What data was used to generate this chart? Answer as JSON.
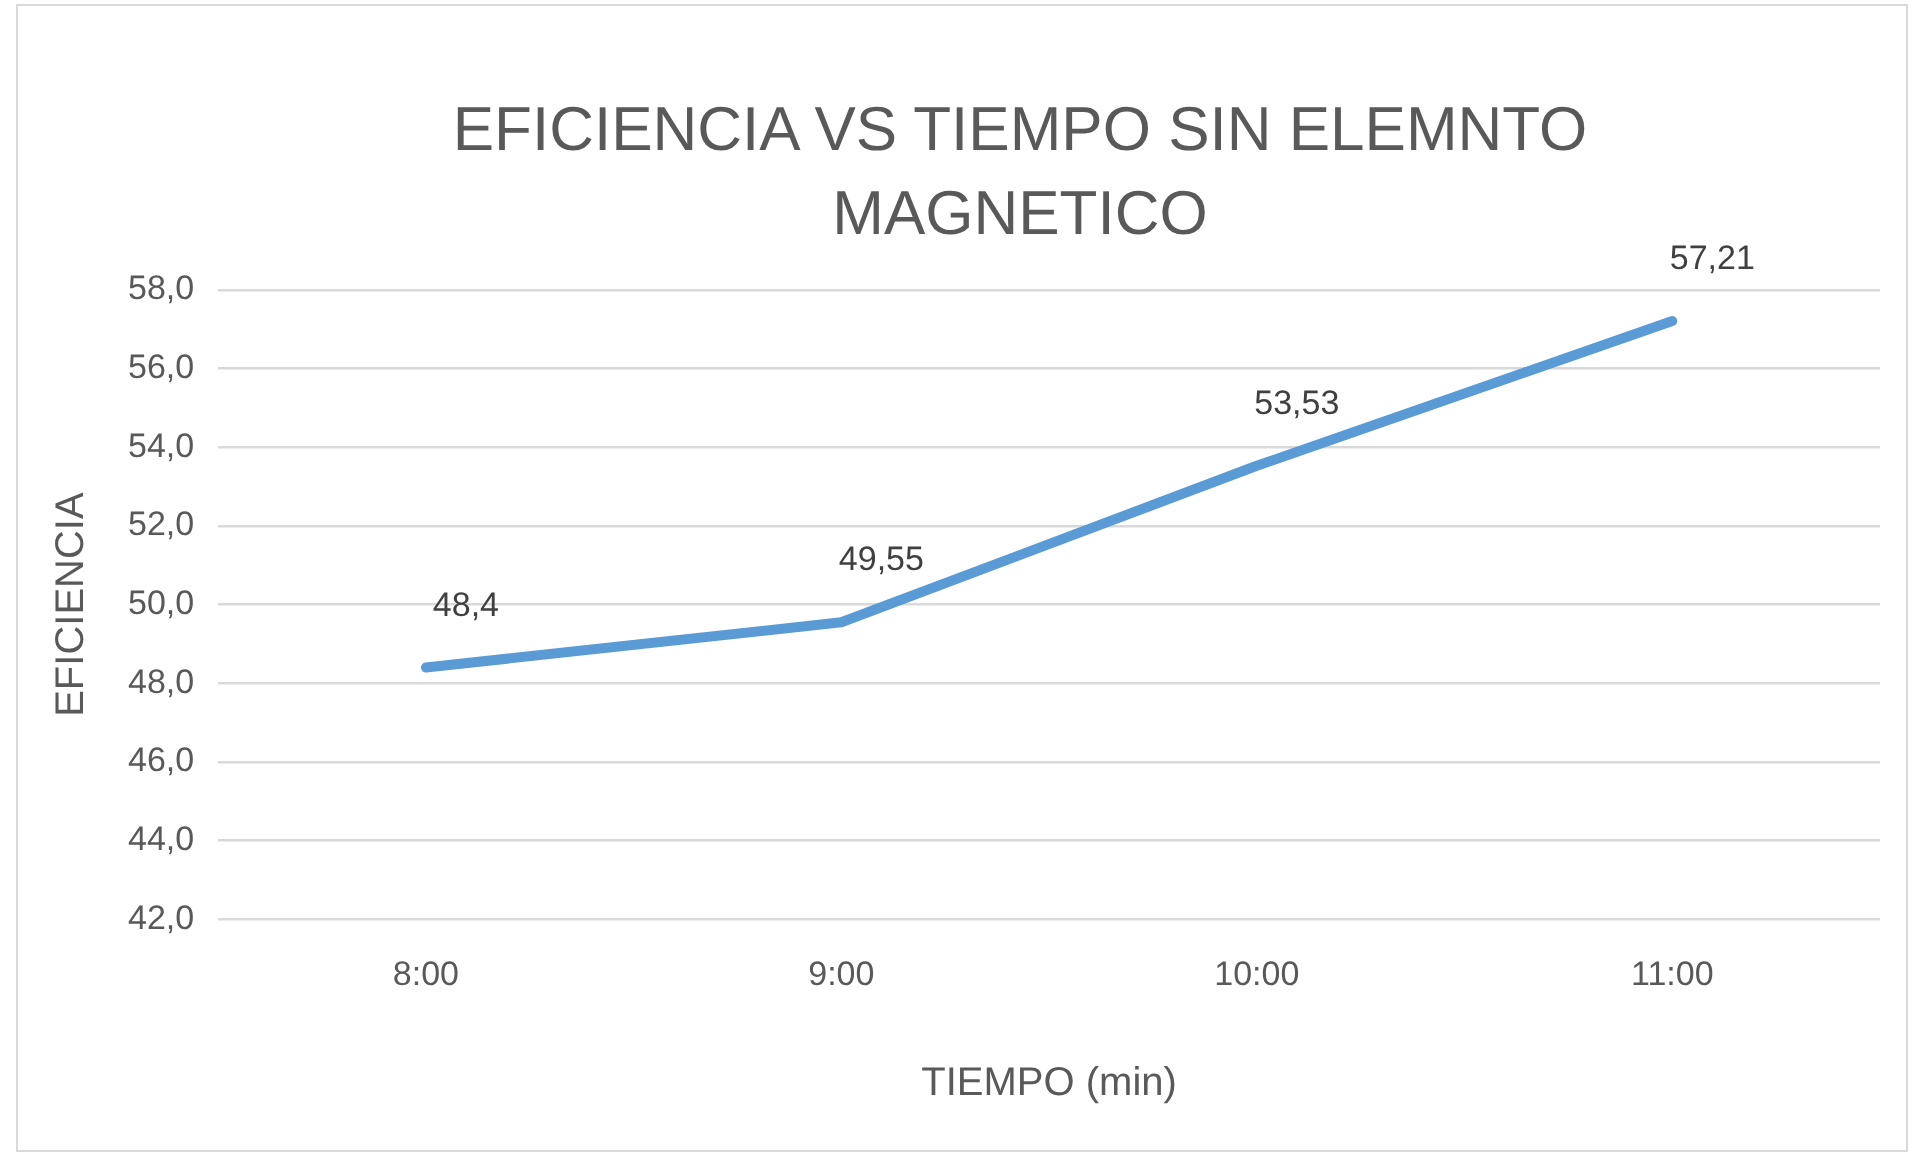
{
  "chart_data": {
    "type": "line",
    "title": "EFICIENCIA VS TIEMPO  SIN ELEMNTO MAGNETICO",
    "xlabel": "TIEMPO (min)",
    "ylabel": "EFICIENCIA",
    "categories": [
      "8:00",
      "9:00",
      "10:00",
      "11:00"
    ],
    "series": [
      {
        "color": "#5b9bd5",
        "values": [
          48.4,
          49.55,
          53.53,
          57.21
        ],
        "value_labels": [
          "48,4",
          "49,55",
          "53,53",
          "57,21"
        ]
      }
    ],
    "ylim": [
      42,
      58
    ],
    "yticks": [
      {
        "value": 42,
        "label": "42,0"
      },
      {
        "value": 44,
        "label": "44,0"
      },
      {
        "value": 46,
        "label": "46,0"
      },
      {
        "value": 48,
        "label": "48,0"
      },
      {
        "value": 50,
        "label": "50,0"
      },
      {
        "value": 52,
        "label": "52,0"
      },
      {
        "value": 54,
        "label": "54,0"
      },
      {
        "value": 56,
        "label": "56,0"
      },
      {
        "value": 58,
        "label": "58,0"
      }
    ],
    "grid": "y",
    "legend": false,
    "marker": "none",
    "line_style": "solid"
  }
}
